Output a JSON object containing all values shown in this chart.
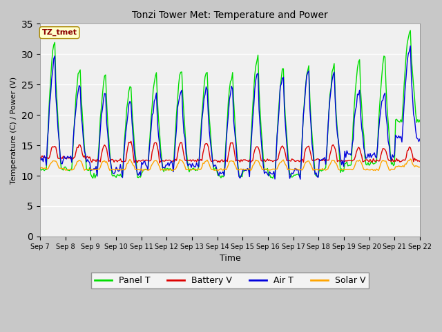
{
  "title": "Tonzi Tower Met: Temperature and Power",
  "xlabel": "Time",
  "ylabel": "Temperature (C) / Power (V)",
  "ylim": [
    0,
    35
  ],
  "yticks": [
    0,
    5,
    10,
    15,
    20,
    25,
    30,
    35
  ],
  "xtick_labels": [
    "Sep 7",
    "Sep 8",
    "Sep 9",
    "Sep 10",
    "Sep 11",
    "Sep 12",
    "Sep 13",
    "Sep 14",
    "Sep 15",
    "Sep 16",
    "Sep 17",
    "Sep 18",
    "Sep 19",
    "Sep 20",
    "Sep 21",
    "Sep 22"
  ],
  "annotation_text": "TZ_tmet",
  "annotation_color": "#8b0000",
  "annotation_bg": "#ffffcc",
  "annotation_edge": "#aa8800",
  "fig_bg_color": "#c8c8c8",
  "plot_bg_color": "#f0f0f0",
  "line_colors": {
    "panel_t": "#00dd00",
    "battery_v": "#dd0000",
    "air_t": "#0000dd",
    "solar_v": "#ffa500"
  },
  "legend_labels": [
    "Panel T",
    "Battery V",
    "Air T",
    "Solar V"
  ],
  "figsize": [
    6.4,
    4.8
  ],
  "dpi": 100
}
